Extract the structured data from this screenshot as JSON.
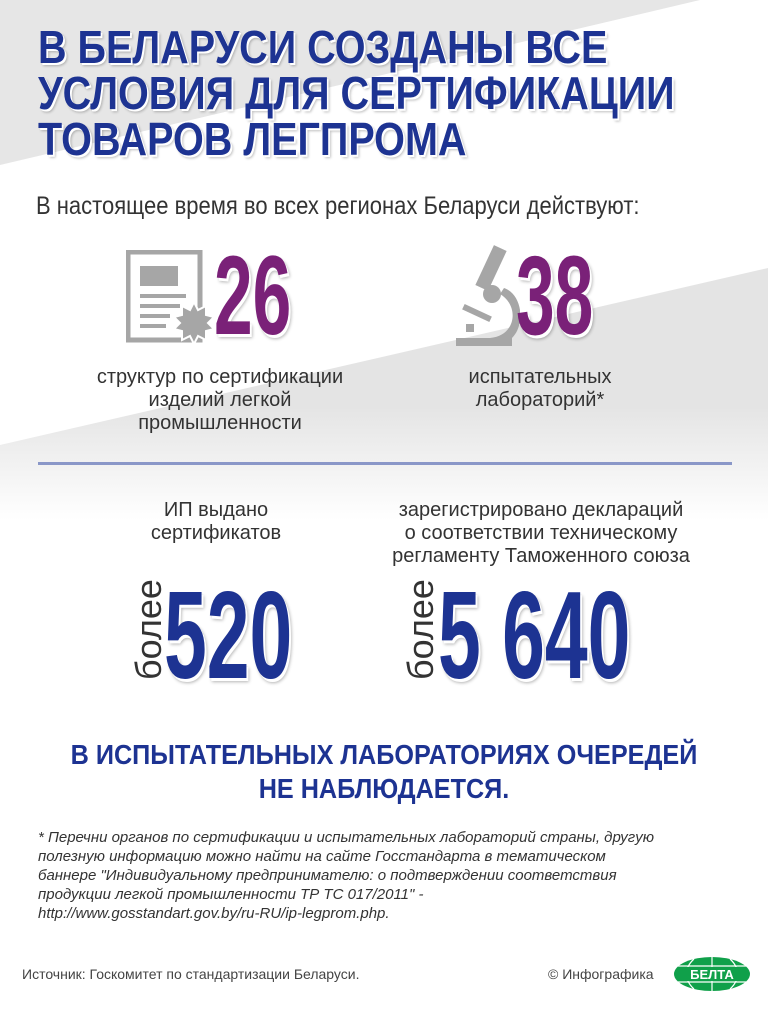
{
  "title": {
    "lines": [
      "В БЕЛАРУСИ СОЗДАНЫ ВСЕ",
      "УСЛОВИЯ ДЛЯ СЕРТИФИКАЦИИ",
      "ТОВАРОВ ЛЕГПРОМА"
    ]
  },
  "subtitle": "В настоящее время во всех регионах Беларуси действуют:",
  "stats_top": [
    {
      "icon": "certificate-icon",
      "value": "26",
      "caption": [
        "структур по сертификации",
        "изделий легкой",
        "промышленности"
      ]
    },
    {
      "icon": "microscope-icon",
      "value": "38",
      "caption": [
        "испытательных",
        "лабораторий*"
      ]
    }
  ],
  "stats_bottom": [
    {
      "caption": [
        "ИП выдано",
        "сертификатов"
      ],
      "prefix": "более",
      "value": "520"
    },
    {
      "caption": [
        "зарегистрировано деклараций",
        "о соответствии техническому",
        "регламенту Таможенного союза"
      ],
      "prefix": "более",
      "value": "5 640"
    }
  ],
  "conclusion": [
    "В ИСПЫТАТЕЛЬНЫХ ЛАБОРАТОРИЯХ ОЧЕРЕДЕЙ",
    "НЕ НАБЛЮДАЕТСЯ."
  ],
  "footnote": [
    "* Перечни органов по сертификации и испытательных лабораторий страны, другую",
    "полезную информацию можно найти на сайте Госстандарта в тематическом",
    "баннере \"Индивидуальному предпринимателю: о подтверждении соответствия",
    "продукции легкой промышленности ТР ТС 017/2011\" -",
    "http://www.gosstandart.gov.by/ru-RU/ip-legprom.php."
  ],
  "source": "Источник: Госкомитет по стандартизации Беларуси.",
  "credit": "© Инфографика",
  "logo": "БЕЛТА",
  "colors": {
    "title_blue": "#1d3392",
    "purple": "#7a2178",
    "icon_gray": "#a6a6a6",
    "logo_green": "#10a04a"
  }
}
